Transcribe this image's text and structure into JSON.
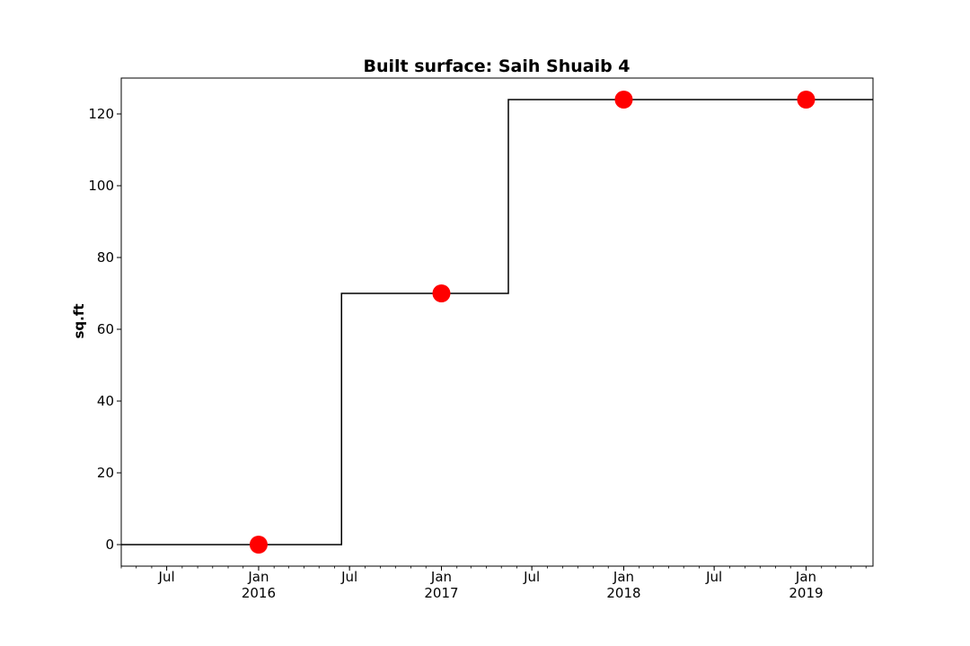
{
  "chart_data": {
    "type": "line",
    "title": "Built surface: Saih Shuaib 4",
    "ylabel": "sq.ft",
    "xlabel": "",
    "xlim": [
      "2015-04-01",
      "2019-05-15"
    ],
    "ylim": [
      -6,
      130
    ],
    "yticks": [
      0,
      20,
      40,
      60,
      80,
      100,
      120
    ],
    "xticks": [
      {
        "date": "2015-07-01",
        "label": "Jul",
        "sublabel": ""
      },
      {
        "date": "2016-01-01",
        "label": "Jan",
        "sublabel": "2016"
      },
      {
        "date": "2016-07-01",
        "label": "Jul",
        "sublabel": ""
      },
      {
        "date": "2017-01-01",
        "label": "Jan",
        "sublabel": "2017"
      },
      {
        "date": "2017-07-01",
        "label": "Jul",
        "sublabel": ""
      },
      {
        "date": "2018-01-01",
        "label": "Jan",
        "sublabel": "2018"
      },
      {
        "date": "2018-07-01",
        "label": "Jul",
        "sublabel": ""
      },
      {
        "date": "2019-01-01",
        "label": "Jan",
        "sublabel": "2019"
      }
    ],
    "series": [
      {
        "kind": "step",
        "color": "#000000",
        "x": [
          "2015-04-01",
          "2016-06-15",
          "2017-05-15",
          "2019-05-15"
        ],
        "y": [
          0,
          70,
          124,
          124
        ]
      },
      {
        "kind": "markers",
        "color": "#ff0000",
        "x": [
          "2016-01-01",
          "2017-01-01",
          "2018-01-01",
          "2019-01-01"
        ],
        "y": [
          0,
          70,
          124,
          124
        ]
      }
    ],
    "grid": false,
    "legend": "none"
  }
}
